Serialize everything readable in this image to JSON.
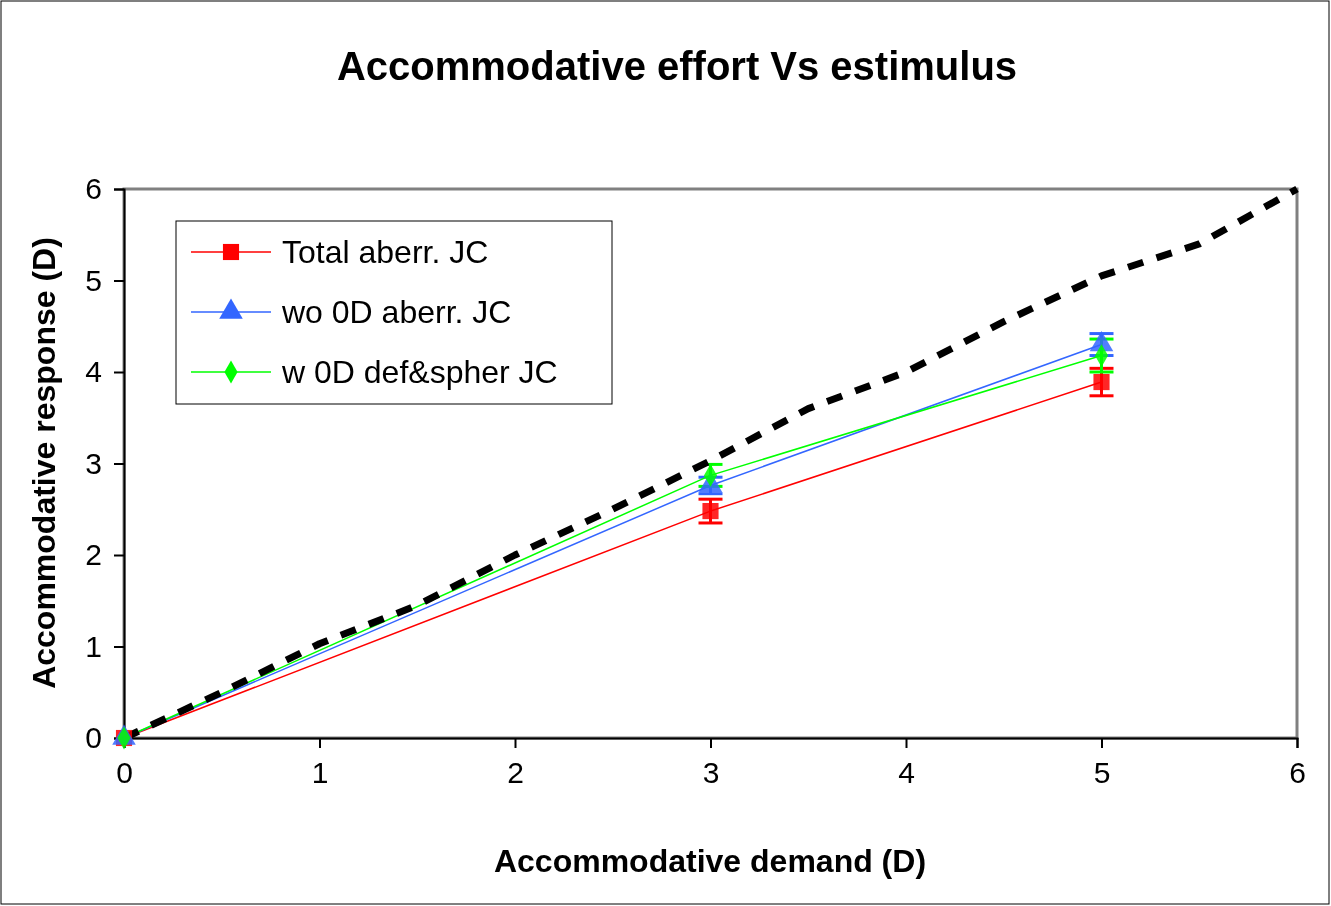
{
  "chart_data": {
    "type": "line",
    "title": "Accommodative effort Vs estimulus",
    "xlabel": "Accommodative demand (D)",
    "ylabel": "Accommodative response (D)",
    "xlim": [
      0,
      6
    ],
    "xticks": [
      0,
      1,
      2,
      3,
      4,
      5,
      6
    ],
    "ylim": [
      0,
      6
    ],
    "yticks": [
      0,
      1,
      2,
      3,
      4,
      5,
      6
    ],
    "grid": false,
    "legend": "top left",
    "series": [
      {
        "name": "Total aberr. JC",
        "color": "#ff0000",
        "marker": "square",
        "x": [
          0,
          3,
          5
        ],
        "values": [
          0,
          2.48,
          3.89
        ],
        "errors": [
          null,
          0.13,
          0.15
        ]
      },
      {
        "name": "wo 0D aberr. JC",
        "color": "#3366ff",
        "marker": "triangle",
        "x": [
          0,
          3,
          5
        ],
        "values": [
          0,
          2.76,
          4.3
        ],
        "errors": [
          null,
          0.09,
          0.12
        ]
      },
      {
        "name": "w 0D def&spher JC",
        "color": "#00ff00",
        "marker": "diamond",
        "x": [
          0,
          3,
          5
        ],
        "values": [
          0,
          2.87,
          4.18
        ],
        "errors": [
          null,
          0.12,
          0.18
        ]
      },
      {
        "color": "#000000",
        "marker": "none",
        "line_style": "dashed",
        "x": [
          0,
          0.5,
          1,
          1.5,
          2,
          2.5,
          3,
          3.5,
          4,
          4.5,
          5,
          5.5,
          6
        ],
        "values": [
          0,
          0.5,
          1.03,
          1.45,
          2,
          2.5,
          3.03,
          3.6,
          4,
          4.55,
          5.05,
          5.4,
          6
        ]
      }
    ]
  }
}
